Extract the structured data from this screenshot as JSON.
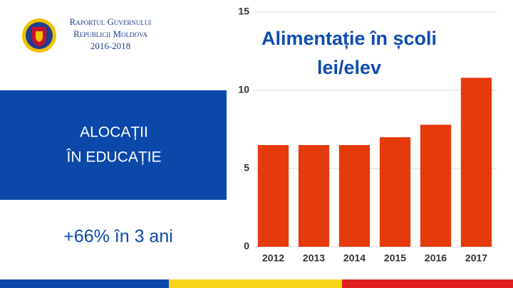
{
  "header": {
    "lines": [
      "Raportul Guvernului",
      "Republicii Moldova",
      "2016-2018"
    ]
  },
  "panel": {
    "heading_lines": [
      "ALOCAȚII",
      "ÎN EDUCAȚIE"
    ],
    "note": "+66% în 3 ani"
  },
  "chart_data": {
    "type": "bar",
    "title": "Alimentație în școli",
    "subtitle": "lei/elev",
    "categories": [
      "2012",
      "2013",
      "2014",
      "2015",
      "2016",
      "2017"
    ],
    "values": [
      6.5,
      6.5,
      6.5,
      7.0,
      7.8,
      10.8
    ],
    "color": "#e53a0c",
    "ylim": [
      0,
      15
    ],
    "yticks": [
      0,
      5,
      10,
      15
    ],
    "grid": true
  }
}
